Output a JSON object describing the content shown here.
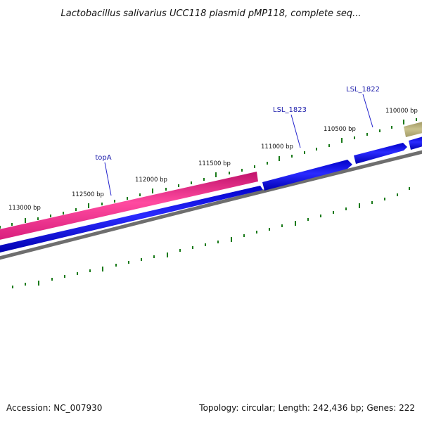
{
  "title": "Lactobacillus salivarius UCC118 plasmid pMP118, complete seq...",
  "tick_labels": {
    "t110000": "110000 bp",
    "t110500": "110500 bp",
    "t111000": "111000 bp",
    "t111500": "111500 bp",
    "t112000": "112000 bp",
    "t112500": "112500 bp",
    "t113000": "113000 bp"
  },
  "genes": {
    "topA": "topA",
    "lsl1823": "LSL_1823",
    "lsl1822": "LSL_1822"
  },
  "footer": {
    "accession": "Accession: NC_007930",
    "summary": "Topology: circular; Length: 242,436 bp; Genes: 222"
  },
  "colors": {
    "pink_gene": "#e8338a",
    "blue_gene": "#1010e0",
    "olive_gene": "#b5ae7a",
    "backbone": "#808080",
    "tick": "#1a7a1a",
    "label_line": "#2222cc"
  }
}
